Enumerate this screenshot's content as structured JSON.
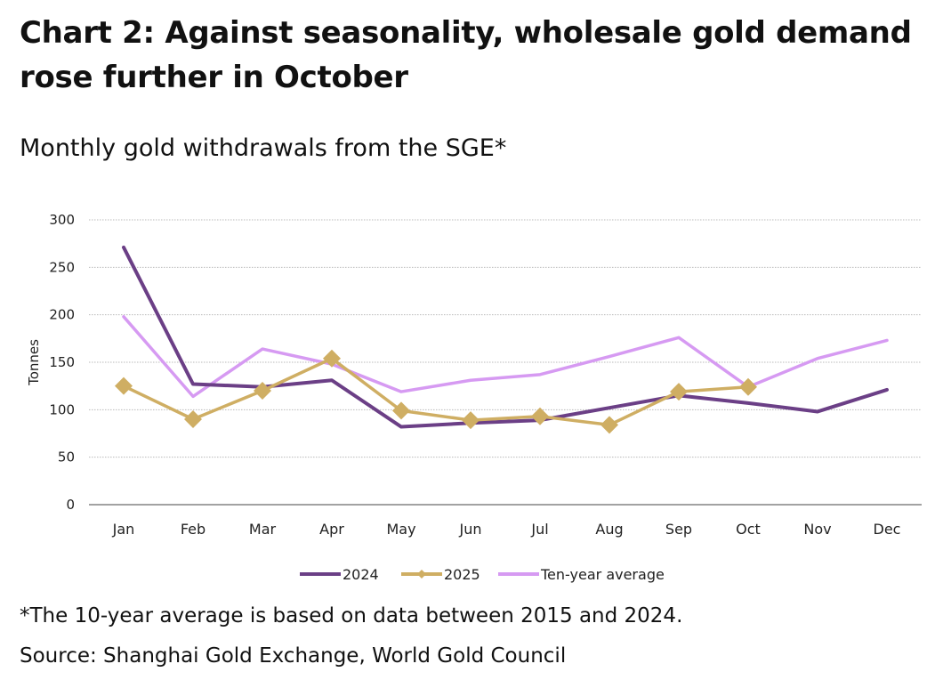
{
  "header": {
    "title": "Chart 2: Against seasonality, wholesale gold demand rose further in October",
    "subtitle": "Monthly gold withdrawals from the SGE*"
  },
  "footer": {
    "footnote": "*The 10-year average is based on data between 2015 and 2024.",
    "source": "Source: Shanghai Gold Exchange, World Gold Council"
  },
  "chart_data": {
    "type": "line",
    "ylabel": "Tonnes",
    "xlabel": "",
    "ylim": [
      0,
      300
    ],
    "yticks": [
      0,
      50,
      100,
      150,
      200,
      250,
      300
    ],
    "grid": true,
    "legend_position": "bottom-center",
    "categories": [
      "Jan",
      "Feb",
      "Mar",
      "Apr",
      "May",
      "Jun",
      "Jul",
      "Aug",
      "Sep",
      "Oct",
      "Nov",
      "Dec"
    ],
    "series": [
      {
        "name": "2024",
        "color": "#6b3f86",
        "marker": "none",
        "values": [
          271,
          127,
          124,
          131,
          82,
          86,
          89,
          102,
          115,
          107,
          98,
          121
        ]
      },
      {
        "name": "2025",
        "color": "#cfae63",
        "marker": "diamond",
        "values": [
          125,
          90,
          120,
          154,
          99,
          89,
          93,
          84,
          119,
          124,
          null,
          null
        ]
      },
      {
        "name": "Ten-year average",
        "color": "#d69af2",
        "marker": "none",
        "values": [
          198,
          114,
          164,
          148,
          119,
          131,
          137,
          156,
          176,
          124,
          154,
          173
        ]
      }
    ]
  }
}
